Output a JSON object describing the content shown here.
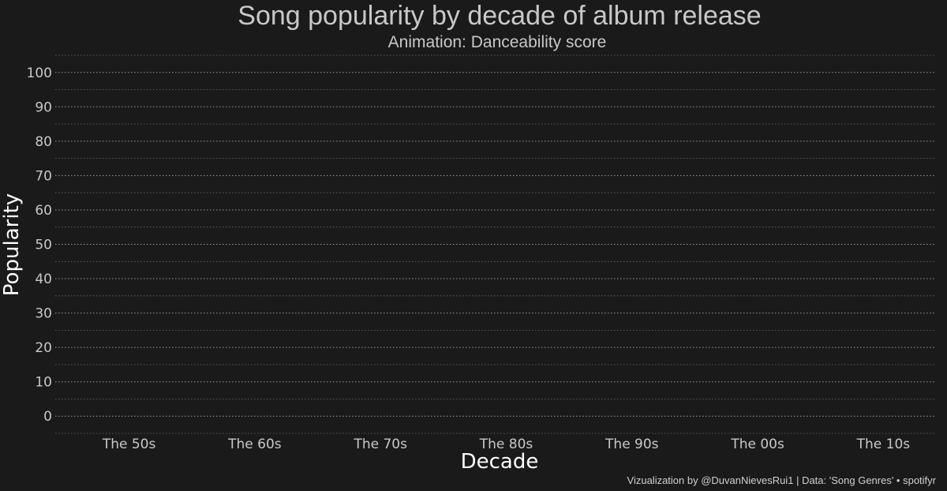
{
  "chart_data": {
    "type": "bar",
    "title": "Song popularity by decade of album release",
    "subtitle": "Animation: Danceability score",
    "xlabel": "Decade",
    "ylabel": "Popularity",
    "categories": [
      "The 50s",
      "The 60s",
      "The 70s",
      "The 80s",
      "The 90s",
      "The 00s",
      "The 10s"
    ],
    "yticks": [
      "0",
      "10",
      "20",
      "30",
      "40",
      "50",
      "60",
      "70",
      "80",
      "90",
      "100"
    ],
    "ylim": [
      -5,
      105
    ],
    "grid": true,
    "caption": "Vizualization by @DuvanNievesRui1 | Data: 'Song Genres' • spotifyr",
    "colors": {
      "background": "#1a1a1a",
      "text": "#c8c8c8",
      "axis_title": "#ffffff",
      "grid": "#9a9a9a"
    }
  }
}
